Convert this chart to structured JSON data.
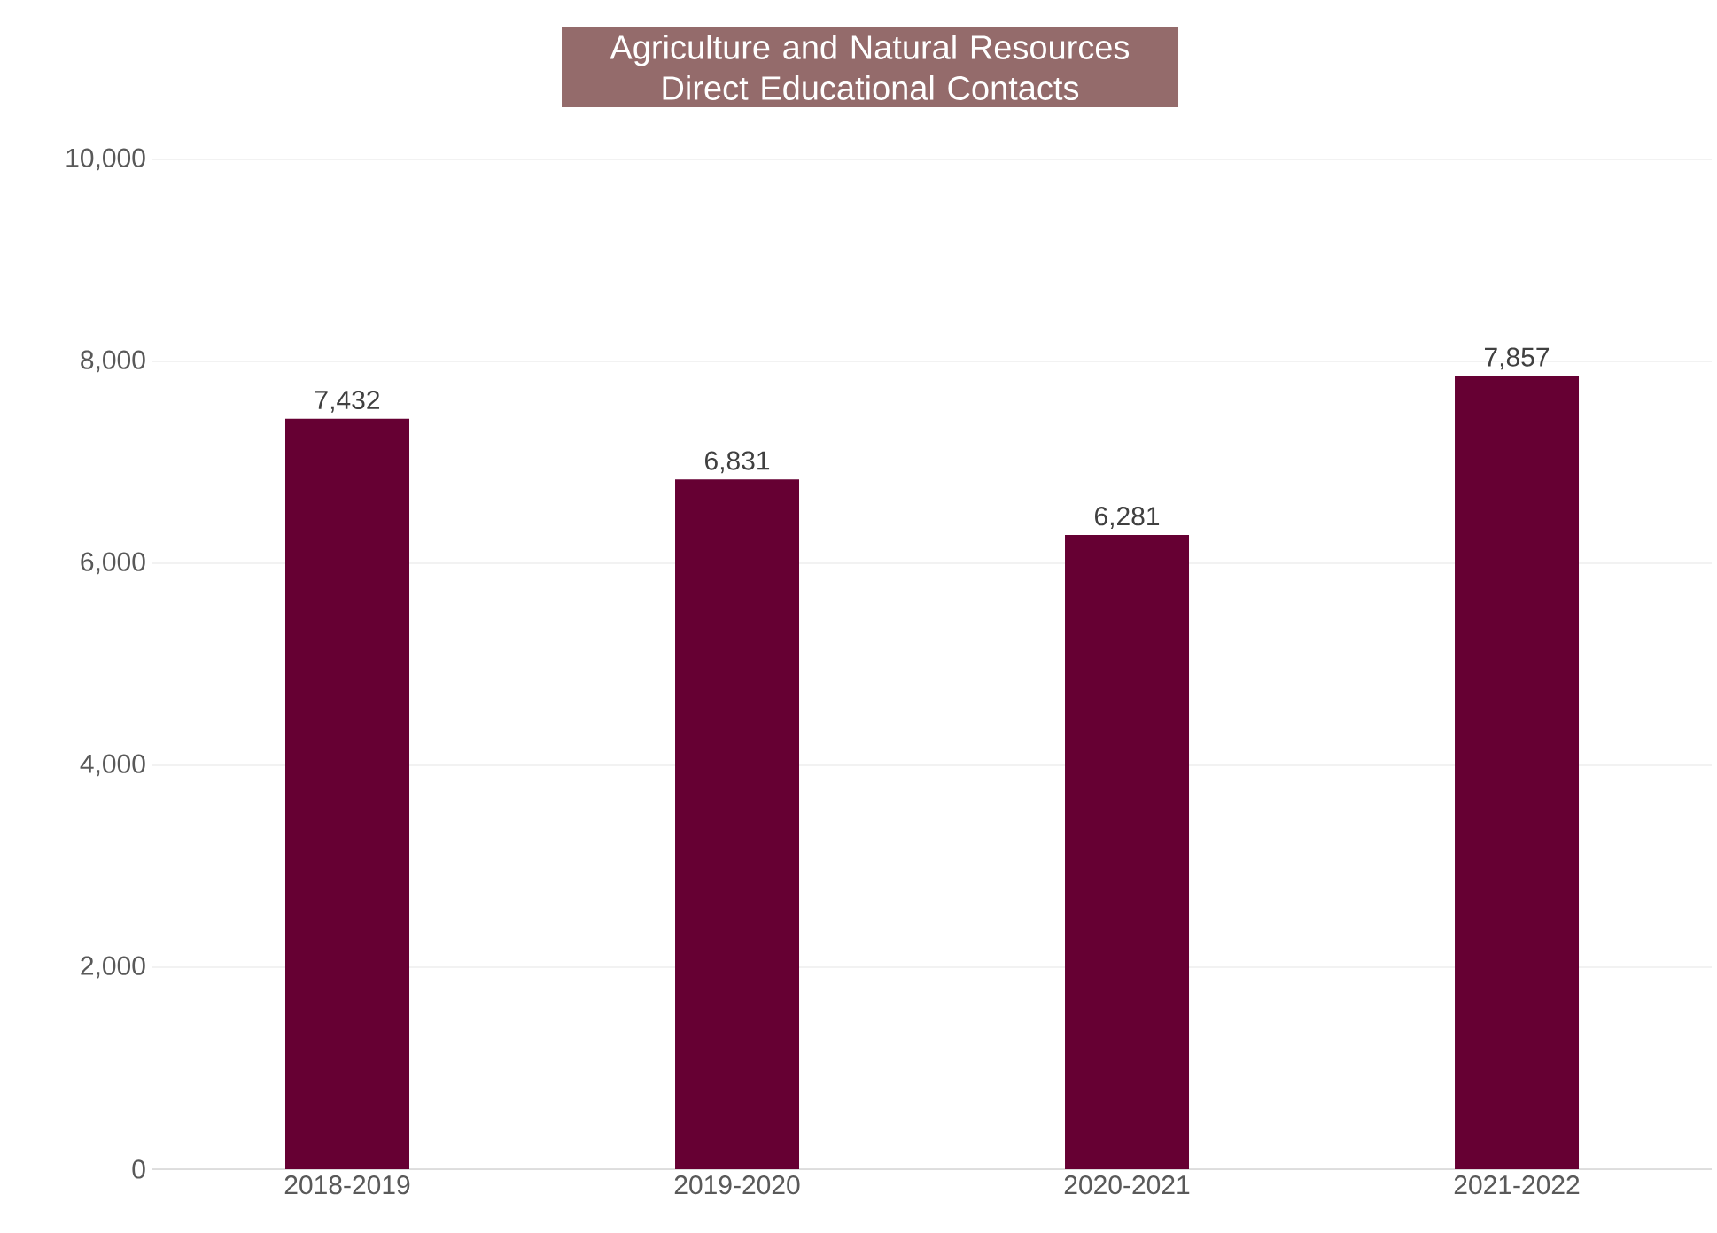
{
  "chart_data": {
    "type": "bar",
    "title": "Agriculture and Natural Resources Direct Educational Contacts",
    "categories": [
      "2018-2019",
      "2019-2020",
      "2020-2021",
      "2021-2022"
    ],
    "values": [
      7432,
      6831,
      6281,
      7857
    ],
    "value_labels": [
      "7,432",
      "6,831",
      "6,281",
      "7,857"
    ],
    "color": "#660033",
    "ylim": [
      0,
      10000
    ],
    "yticks": [
      {
        "value": 0,
        "label": "0"
      },
      {
        "value": 2000,
        "label": "2,000"
      },
      {
        "value": 4000,
        "label": "4,000"
      },
      {
        "value": 6000,
        "label": "6,000"
      },
      {
        "value": 8000,
        "label": "8,000"
      },
      {
        "value": 10000,
        "label": "10,000"
      }
    ],
    "grid": "y"
  }
}
